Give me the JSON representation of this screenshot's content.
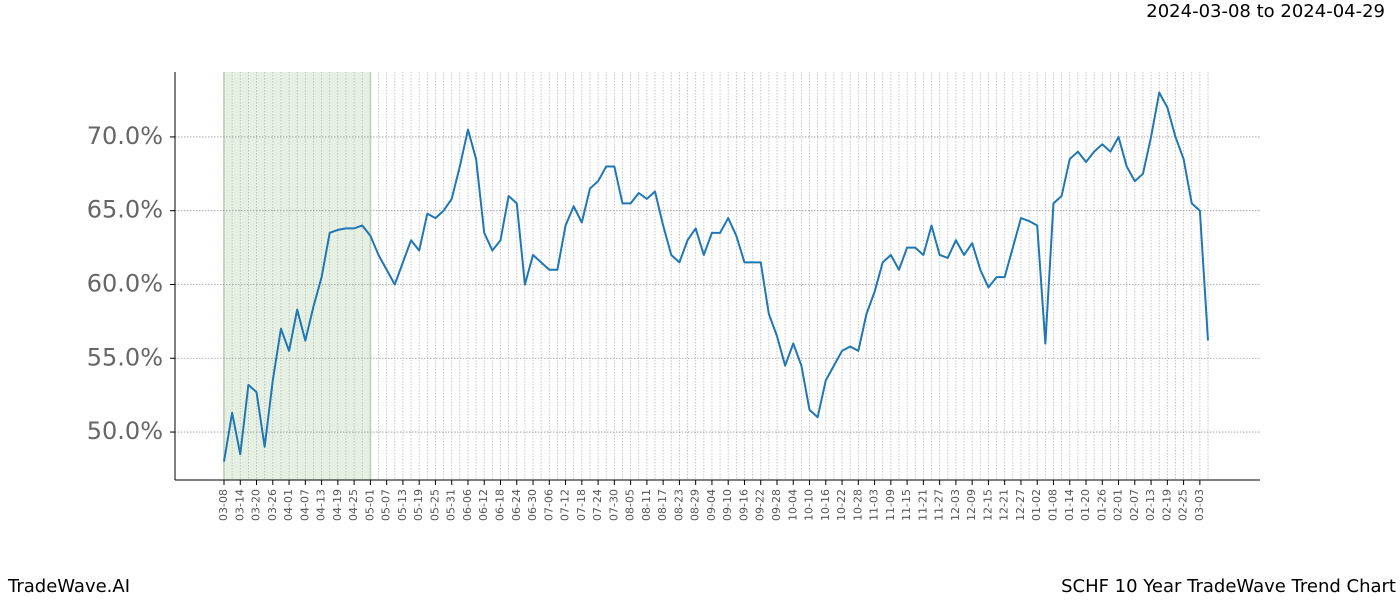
{
  "chart_data": {
    "type": "line",
    "title": "SCHF 10 Year TradeWave Trend Chart",
    "subtitle": "2024-03-08 to 2024-04-29",
    "brand": "TradeWave.AI",
    "x": [
      "03-08",
      null,
      "03-14",
      null,
      "03-20",
      null,
      "03-26",
      null,
      "04-01",
      null,
      "04-07",
      null,
      "04-13",
      null,
      "04-19",
      null,
      "04-25",
      null,
      "05-01",
      null,
      "05-07",
      null,
      "05-13",
      null,
      "05-19",
      null,
      "05-25",
      null,
      "05-31",
      null,
      "06-06",
      null,
      "06-12",
      null,
      "06-18",
      null,
      "06-24",
      null,
      "06-30",
      null,
      "07-06",
      null,
      "07-12",
      null,
      "07-18",
      null,
      "07-24",
      null,
      "07-30",
      null,
      "08-05",
      null,
      "08-11",
      null,
      "08-17",
      null,
      "08-23",
      null,
      "08-29",
      null,
      "09-04",
      null,
      "09-10",
      null,
      "09-16",
      null,
      "09-22",
      null,
      "09-28",
      null,
      "10-04",
      null,
      "10-10",
      null,
      "10-16",
      null,
      "10-22",
      null,
      "10-28",
      null,
      "11-03",
      null,
      "11-09",
      null,
      "11-15",
      null,
      "11-21",
      null,
      "11-27",
      null,
      "12-03",
      null,
      "12-09",
      null,
      "12-15",
      null,
      "12-21",
      null,
      "12-27",
      null,
      "01-02",
      null,
      "01-08",
      null,
      "01-14",
      null,
      "01-20",
      null,
      "01-26",
      null,
      "02-01",
      null,
      "02-07",
      null,
      "02-13",
      null,
      "02-19",
      null,
      "02-25",
      null,
      "03-03",
      null
    ],
    "series": [
      {
        "name": "SCHF",
        "color": "#1f77b4",
        "values": [
          48.0,
          51.3,
          48.5,
          53.2,
          52.7,
          49.0,
          53.5,
          57.0,
          55.5,
          58.3,
          56.2,
          58.5,
          60.5,
          63.5,
          63.7,
          63.8,
          63.8,
          64.0,
          63.3,
          62.0,
          61.0,
          60.0,
          61.5,
          63.0,
          62.3,
          64.8,
          64.5,
          65.0,
          65.8,
          68.0,
          70.5,
          68.5,
          63.5,
          62.3,
          63.0,
          66.0,
          65.5,
          60.0,
          62.0,
          61.5,
          61.0,
          61.0,
          64.0,
          65.3,
          64.2,
          66.5,
          67.0,
          68.0,
          68.0,
          65.5,
          65.5,
          66.2,
          65.8,
          66.3,
          64.0,
          62.0,
          61.5,
          63.0,
          63.8,
          62.0,
          63.5,
          63.5,
          64.5,
          63.3,
          61.5,
          61.5,
          61.5,
          58.0,
          56.5,
          54.5,
          56.0,
          54.5,
          51.5,
          51.0,
          53.5,
          54.5,
          55.5,
          55.8,
          55.5,
          58.0,
          59.5,
          61.5,
          62.0,
          61.0,
          62.5,
          62.5,
          62.0,
          64.0,
          62.0,
          61.8,
          63.0,
          62.0,
          62.8,
          61.0,
          59.8,
          60.5,
          60.5,
          62.5,
          64.5,
          64.3,
          64.0,
          56.0,
          65.5,
          66.0,
          68.5,
          69.0,
          68.3,
          69.0,
          69.5,
          69.0,
          70.0,
          68.0,
          67.0,
          67.5,
          70.0,
          73.0,
          72.0,
          70.0,
          68.5,
          65.5,
          65.0,
          56.2
        ]
      }
    ],
    "highlight": [
      "03-08",
      "05-01"
    ],
    "highlight_color": "#e5f0e3",
    "ylim": [
      46.75,
      74.4
    ],
    "yticks": [
      {
        "value": 50,
        "label": "50.0%"
      },
      {
        "value": 55,
        "label": "55.0%"
      },
      {
        "value": 60,
        "label": "60.0%"
      },
      {
        "value": 65,
        "label": "65.0%"
      },
      {
        "value": 70,
        "label": "70.0%"
      }
    ],
    "grid": true
  }
}
